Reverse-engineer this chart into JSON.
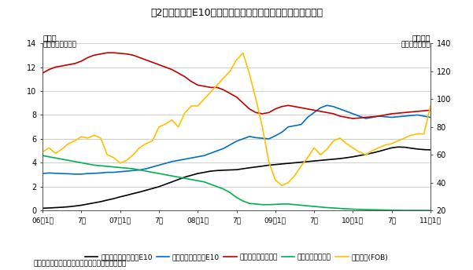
{
  "title": "図2　ガソホーE10およびベンジンの販売量と原油価格の推移",
  "ylabel_left_line1": "販売量",
  "ylabel_left_line2": "百万リットル／日",
  "ylabel_right_line1": "原油価格",
  "ylabel_right_line2": "米ドル／バレル",
  "source": "資料：タイエネルギー省、米国エネルギー情報局",
  "ylim_left": [
    0,
    14
  ],
  "ylim_right": [
    20,
    140
  ],
  "yticks_left": [
    0,
    2,
    4,
    6,
    8,
    10,
    12,
    14
  ],
  "yticks_right": [
    20,
    40,
    60,
    80,
    100,
    120,
    140
  ],
  "xtick_labels": [
    "06年1月",
    "7月",
    "07年1月",
    "7月",
    "08年1月",
    "7月",
    "09年1月",
    "7月",
    "10年1月",
    "7月",
    "11年1月"
  ],
  "legend_labels": [
    "レギュラーガソホーE10",
    "ハイオクガソホーE10",
    "レギュラーガソリン",
    "ハイオクガソリン",
    "原油価格(FOB)"
  ],
  "legend_colors": [
    "#000000",
    "#0070c0",
    "#c00000",
    "#00b050",
    "#ffc000"
  ],
  "series": {
    "regular_gasohol": {
      "color": "#000000",
      "linewidth": 1.2,
      "axis": "left",
      "values": [
        0.2,
        0.22,
        0.25,
        0.28,
        0.32,
        0.38,
        0.45,
        0.55,
        0.65,
        0.75,
        0.88,
        1.0,
        1.15,
        1.28,
        1.42,
        1.55,
        1.7,
        1.85,
        2.0,
        2.2,
        2.4,
        2.6,
        2.8,
        2.95,
        3.1,
        3.2,
        3.3,
        3.35,
        3.38,
        3.4,
        3.42,
        3.5,
        3.58,
        3.65,
        3.72,
        3.8,
        3.85,
        3.9,
        3.95,
        4.0,
        4.05,
        4.1,
        4.15,
        4.2,
        4.25,
        4.3,
        4.35,
        4.42,
        4.5,
        4.6,
        4.7,
        4.82,
        4.95,
        5.1,
        5.25,
        5.32,
        5.3,
        5.22,
        5.15,
        5.1,
        5.08
      ]
    },
    "hioc_gasohol": {
      "color": "#0070c0",
      "linewidth": 1.2,
      "axis": "left",
      "values": [
        3.1,
        3.15,
        3.12,
        3.1,
        3.08,
        3.05,
        3.05,
        3.1,
        3.12,
        3.15,
        3.2,
        3.2,
        3.25,
        3.3,
        3.35,
        3.4,
        3.5,
        3.65,
        3.8,
        3.95,
        4.1,
        4.2,
        4.3,
        4.4,
        4.5,
        4.6,
        4.8,
        5.0,
        5.2,
        5.5,
        5.8,
        6.0,
        6.2,
        6.1,
        6.05,
        6.0,
        6.25,
        6.55,
        7.0,
        7.1,
        7.2,
        7.8,
        8.2,
        8.6,
        8.8,
        8.7,
        8.5,
        8.3,
        8.1,
        7.9,
        7.7,
        7.8,
        7.9,
        7.85,
        7.8,
        7.85,
        7.9,
        7.95,
        8.0,
        7.9,
        7.8
      ]
    },
    "regular_gasoline": {
      "color": "#c00000",
      "linewidth": 1.2,
      "axis": "left",
      "values": [
        11.5,
        11.8,
        12.0,
        12.1,
        12.2,
        12.3,
        12.5,
        12.8,
        13.0,
        13.1,
        13.2,
        13.2,
        13.15,
        13.1,
        13.0,
        12.8,
        12.6,
        12.4,
        12.2,
        12.0,
        11.8,
        11.5,
        11.2,
        10.8,
        10.5,
        10.4,
        10.3,
        10.3,
        10.1,
        9.8,
        9.5,
        9.0,
        8.5,
        8.2,
        8.1,
        8.2,
        8.5,
        8.7,
        8.8,
        8.7,
        8.6,
        8.5,
        8.4,
        8.3,
        8.2,
        8.1,
        7.9,
        7.8,
        7.7,
        7.75,
        7.8,
        7.85,
        7.9,
        8.0,
        8.1,
        8.15,
        8.2,
        8.25,
        8.3,
        8.35,
        8.4
      ]
    },
    "hioc_gasoline": {
      "color": "#00b050",
      "linewidth": 1.2,
      "axis": "left",
      "values": [
        4.6,
        4.5,
        4.4,
        4.3,
        4.2,
        4.1,
        4.0,
        3.9,
        3.8,
        3.75,
        3.7,
        3.65,
        3.6,
        3.55,
        3.5,
        3.4,
        3.3,
        3.2,
        3.1,
        3.0,
        2.9,
        2.8,
        2.7,
        2.6,
        2.5,
        2.4,
        2.2,
        2.0,
        1.8,
        1.5,
        1.1,
        0.8,
        0.6,
        0.55,
        0.5,
        0.5,
        0.52,
        0.55,
        0.55,
        0.5,
        0.45,
        0.4,
        0.35,
        0.3,
        0.25,
        0.22,
        0.18,
        0.15,
        0.12,
        0.1,
        0.08,
        0.07,
        0.06,
        0.05,
        0.04,
        0.03,
        0.02,
        0.02,
        0.02,
        0.02,
        0.02
      ]
    },
    "crude_oil": {
      "color": "#ffc000",
      "linewidth": 1.2,
      "axis": "right",
      "values": [
        62,
        65,
        61,
        64,
        68,
        70,
        73,
        72,
        74,
        72,
        60,
        58,
        54,
        56,
        60,
        65,
        68,
        70,
        80,
        82,
        85,
        80,
        90,
        95,
        95,
        100,
        105,
        110,
        115,
        120,
        128,
        133,
        118,
        100,
        80,
        55,
        42,
        38,
        40,
        45,
        52,
        58,
        65,
        60,
        64,
        70,
        72,
        68,
        65,
        62,
        60,
        63,
        65,
        67,
        68,
        70,
        72,
        74,
        75,
        75,
        95
      ]
    }
  }
}
